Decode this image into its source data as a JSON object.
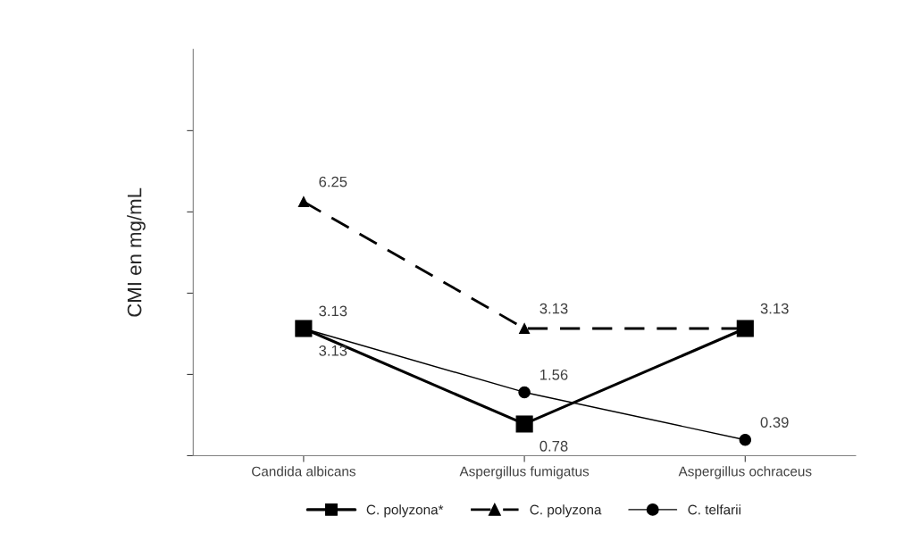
{
  "chart_data": {
    "type": "line",
    "ylabel": "CMI en mg/mL",
    "categories": [
      "Candida albicans",
      "Aspergillus fumigatus",
      "Aspergillus ochraceus"
    ],
    "series": [
      {
        "name": "C. polyzona*",
        "color": "#000000",
        "values": [
          3.13,
          0.78,
          3.13
        ],
        "marker": "square",
        "line_style": "solid",
        "value_labels": [
          "3.13",
          "0.78",
          null
        ]
      },
      {
        "name": "C. polyzona",
        "color": "#000000",
        "values": [
          6.25,
          3.13,
          3.13
        ],
        "marker": "triangle",
        "line_style": "dashed",
        "value_labels": [
          "6.25",
          "3.13",
          "3.13"
        ]
      },
      {
        "name": "C. telfarii",
        "color": "#000000",
        "values": [
          3.13,
          1.56,
          0.39
        ],
        "marker": "circle",
        "line_style": "solid",
        "value_labels": [
          "3.13",
          "1.56",
          "0.39"
        ]
      }
    ],
    "ylim": [
      0,
      10
    ],
    "yticks": [
      {
        "value": 0,
        "label": null
      },
      {
        "value": 2,
        "label": null
      },
      {
        "value": 4,
        "label": null
      },
      {
        "value": 6,
        "label": null
      },
      {
        "value": 8,
        "label": null
      }
    ],
    "grid": false,
    "legend": "bottom"
  }
}
